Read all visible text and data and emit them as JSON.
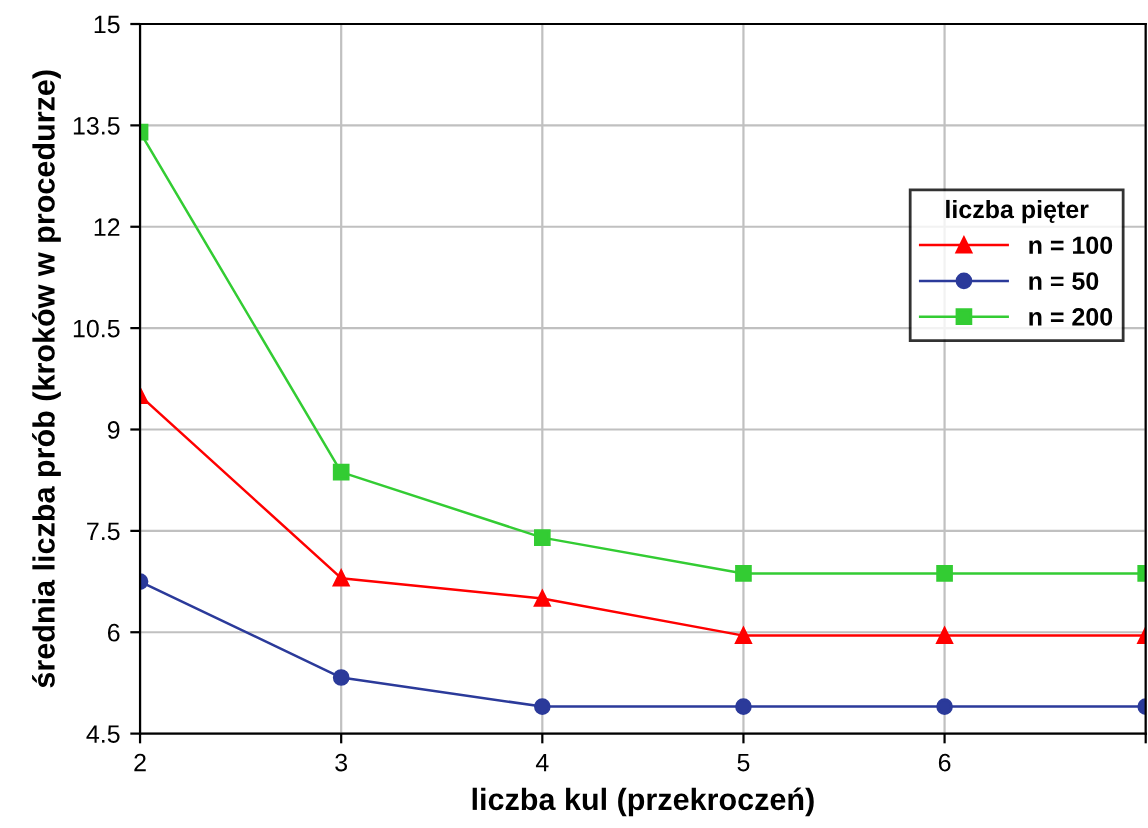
{
  "chart_data": {
    "type": "line",
    "xlabel": "liczba kul (przekroczeń)",
    "ylabel": "średnia liczba prób (kroków w procedurze)",
    "legend_title": "liczba pięter",
    "x": [
      2,
      3,
      4,
      5,
      6,
      7
    ],
    "series": [
      {
        "name": "n = 100",
        "color": "#ff0000",
        "marker": "triangle",
        "values": [
          9.5,
          6.8,
          6.5,
          5.95,
          5.95,
          5.95
        ]
      },
      {
        "name": "n = 50",
        "color": "#2b3a9a",
        "marker": "circle",
        "values": [
          6.75,
          5.33,
          4.9,
          4.9,
          4.9,
          4.9
        ]
      },
      {
        "name": "n = 200",
        "color": "#33cc33",
        "marker": "square",
        "values": [
          13.4,
          8.37,
          7.4,
          6.87,
          6.87,
          6.87
        ]
      }
    ],
    "xlim": [
      2,
      7
    ],
    "xticks": [
      2,
      3,
      4,
      5,
      6,
      {
        "value": 7,
        "label": null
      }
    ],
    "ylim": [
      4.5,
      15
    ],
    "yticks": [
      4.5,
      6,
      7.5,
      9,
      10.5,
      12,
      13.5,
      15
    ],
    "grid": true,
    "legend": "right",
    "line_style": "solid"
  }
}
